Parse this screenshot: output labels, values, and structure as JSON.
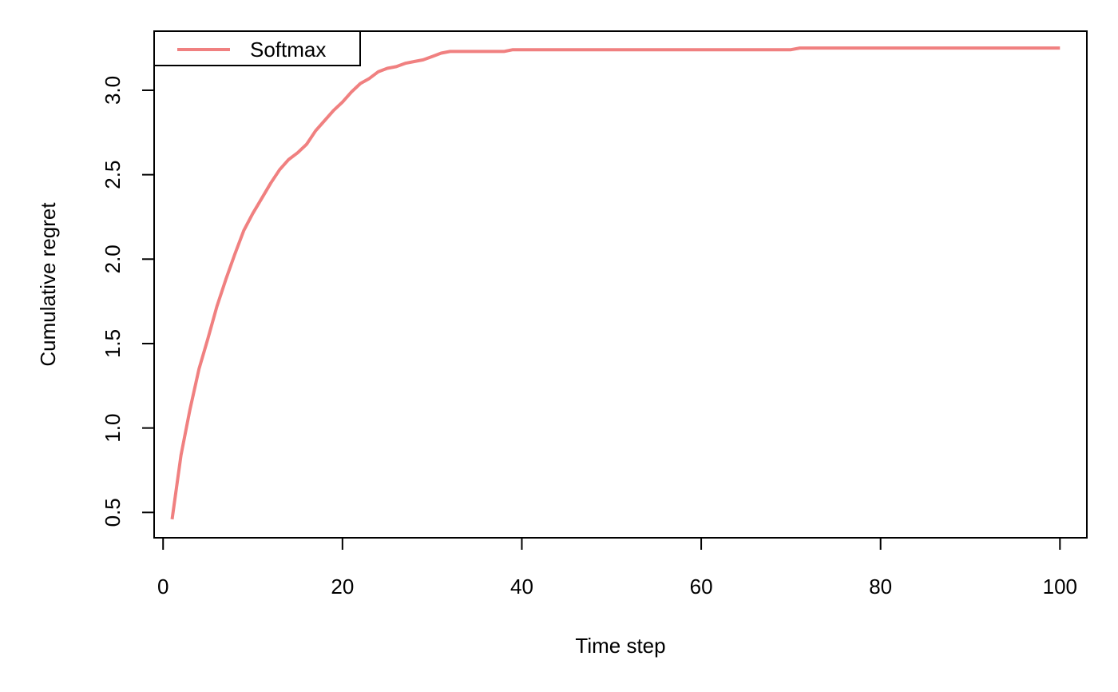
{
  "chart_data": {
    "type": "line",
    "title": "",
    "xlabel": "Time step",
    "ylabel": "Cumulative regret",
    "xlim": [
      -1,
      103
    ],
    "ylim": [
      0.35,
      3.35
    ],
    "xticks": [
      0,
      20,
      40,
      60,
      80,
      100
    ],
    "yticks": [
      0.5,
      1.0,
      1.5,
      2.0,
      2.5,
      3.0
    ],
    "xtick_labels": [
      "0",
      "20",
      "40",
      "60",
      "80",
      "100"
    ],
    "ytick_labels": [
      "0.5",
      "1.0",
      "1.5",
      "2.0",
      "2.5",
      "3.0"
    ],
    "grid": false,
    "legend": {
      "position": "top-left",
      "entries": [
        "Softmax"
      ]
    },
    "series": [
      {
        "name": "Softmax",
        "color": "#F08080",
        "x": [
          1,
          2,
          3,
          4,
          5,
          6,
          7,
          8,
          9,
          10,
          11,
          12,
          13,
          14,
          15,
          16,
          17,
          18,
          19,
          20,
          21,
          22,
          23,
          24,
          25,
          26,
          27,
          28,
          29,
          30,
          31,
          32,
          35,
          38,
          39,
          45,
          50,
          60,
          70,
          71,
          80,
          90,
          100
        ],
        "y": [
          0.46,
          0.84,
          1.11,
          1.35,
          1.53,
          1.72,
          1.88,
          2.03,
          2.17,
          2.27,
          2.36,
          2.45,
          2.53,
          2.59,
          2.63,
          2.68,
          2.76,
          2.82,
          2.88,
          2.93,
          2.99,
          3.04,
          3.07,
          3.11,
          3.13,
          3.14,
          3.16,
          3.17,
          3.18,
          3.2,
          3.22,
          3.23,
          3.23,
          3.23,
          3.24,
          3.24,
          3.24,
          3.24,
          3.24,
          3.25,
          3.25,
          3.25,
          3.25
        ]
      }
    ]
  }
}
